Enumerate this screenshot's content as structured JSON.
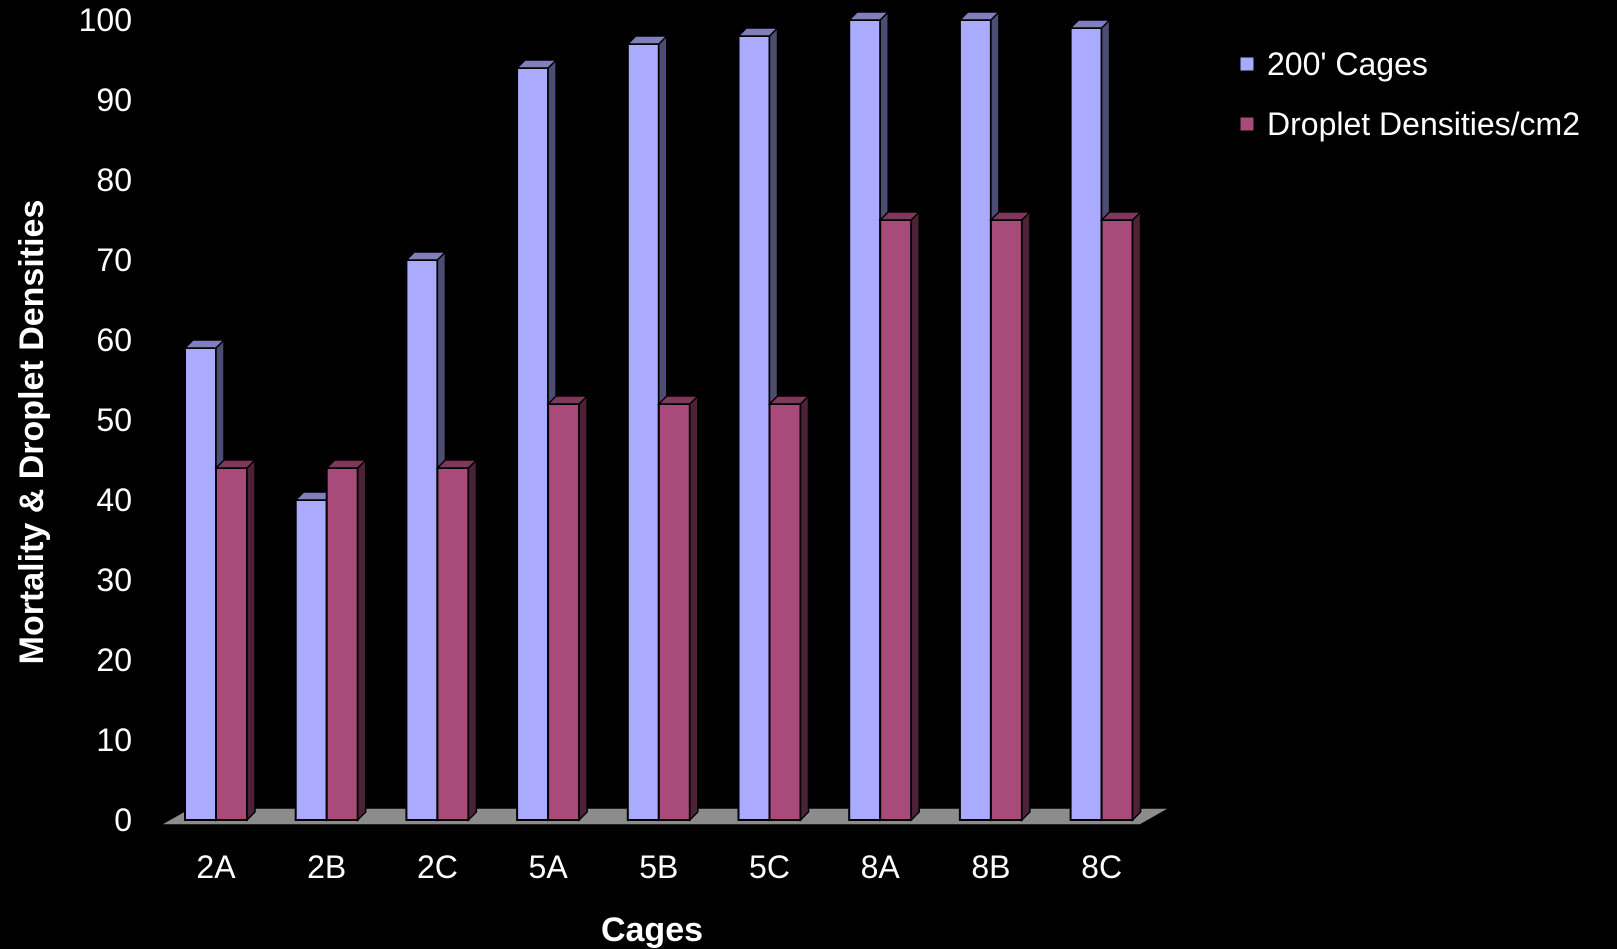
{
  "chart_data": {
    "type": "bar",
    "categories": [
      "2A",
      "2B",
      "2C",
      "5A",
      "5B",
      "5C",
      "8A",
      "8B",
      "8C"
    ],
    "series": [
      {
        "name": "200' Cages",
        "values": [
          59,
          40,
          70,
          94,
          97,
          98,
          100,
          100,
          99
        ]
      },
      {
        "name": "Droplet Densities/cm2",
        "values": [
          44,
          44,
          44,
          52,
          52,
          52,
          75,
          75,
          75
        ]
      }
    ],
    "xlabel": "Cages",
    "ylabel": "Mortality & Droplet Densities",
    "ylim": [
      0,
      100
    ],
    "yticks": [
      "0",
      "10",
      "20",
      "30",
      "40",
      "50",
      "60",
      "70",
      "80",
      "90",
      "100"
    ],
    "grid": false,
    "legend_position": "top-right",
    "three_d": true,
    "colors": {
      "background": "#000000",
      "series": [
        "#aaaaff",
        "#a94b7a"
      ],
      "floor": "#8c8c8c",
      "text": "#ffffff"
    }
  }
}
